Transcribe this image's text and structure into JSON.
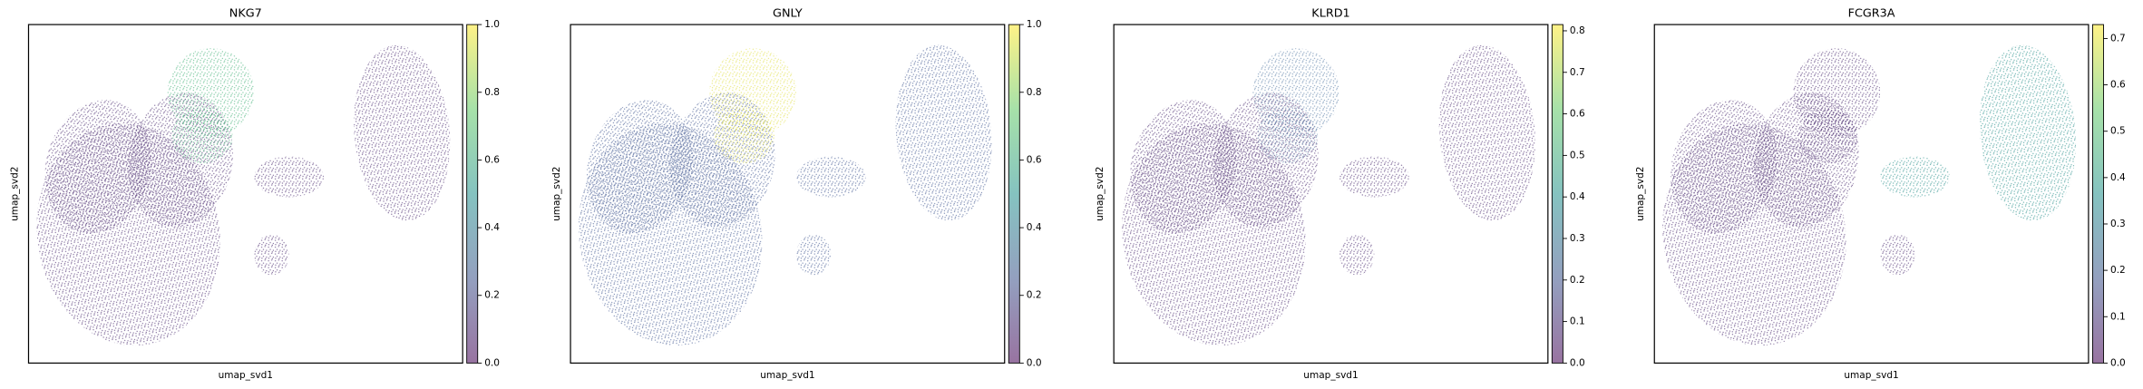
{
  "chart_data": [
    {
      "type": "scatter",
      "title": "NKG7",
      "x_label": "umap_svd1",
      "y_label": "umap_svd2",
      "colormap": "viridis",
      "colorbar_lim": [
        0,
        1
      ],
      "colorbar_ticks": [
        {
          "value": 0,
          "label": "0.0"
        },
        0.2,
        0.4,
        0.6,
        0.8,
        {
          "value": 1,
          "label": "1.0"
        }
      ]
    },
    {
      "type": "scatter",
      "title": "GNLY",
      "x_label": "umap_svd1",
      "y_label": "umap_svd2",
      "colormap": "viridis",
      "colorbar_lim": [
        0,
        1
      ],
      "colorbar_ticks": [
        {
          "value": 0,
          "label": "0.0"
        },
        0.2,
        0.4,
        0.6,
        0.8,
        {
          "value": 1,
          "label": "1.0"
        }
      ]
    },
    {
      "type": "scatter",
      "title": "KLRD1",
      "x_label": "umap_svd1",
      "y_label": "umap_svd2",
      "colormap": "viridis",
      "colorbar_lim": [
        0,
        0.815
      ],
      "colorbar_ticks": [
        {
          "value": 0,
          "label": "0.0"
        },
        0.1,
        0.2,
        0.3,
        0.4,
        0.5,
        0.6,
        0.7,
        0.8
      ]
    },
    {
      "type": "scatter",
      "title": "FCGR3A",
      "x_label": "umap_svd1",
      "y_label": "umap_svd2",
      "colormap": "viridis",
      "colorbar_lim": [
        0,
        0.73
      ],
      "colorbar_ticks": [
        {
          "value": 0,
          "label": "0.0"
        },
        0.1,
        0.2,
        0.3,
        0.4,
        0.5,
        0.6,
        0.7
      ]
    }
  ]
}
